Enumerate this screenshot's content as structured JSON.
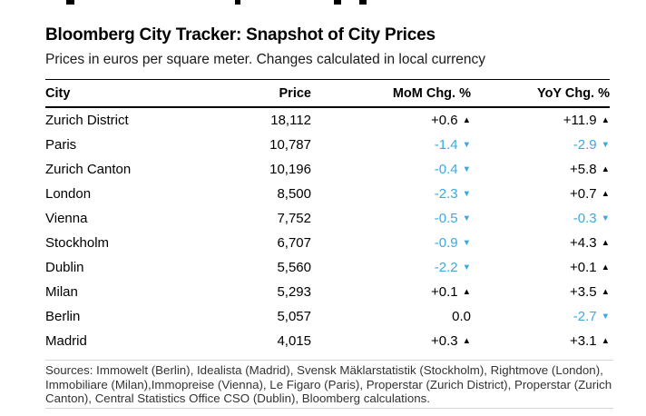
{
  "header": {
    "title": "Bloomberg City Tracker: Snapshot of City Prices",
    "subtitle": "Prices in euros per square meter. Changes calculated in local currency"
  },
  "table": {
    "columns": {
      "city": "City",
      "price": "Price",
      "mom": "MoM Chg. %",
      "yoy": "YoY Chg. %"
    },
    "rows": [
      {
        "city": "Zurich District",
        "price": "18,112",
        "mom": "+0.6",
        "mom_dir": "up",
        "mom_arrow": "▲",
        "yoy": "+11.9",
        "yoy_dir": "up",
        "yoy_arrow": "▲"
      },
      {
        "city": "Paris",
        "price": "10,787",
        "mom": "-1.4",
        "mom_dir": "down",
        "mom_arrow": "▼",
        "yoy": "-2.9",
        "yoy_dir": "down",
        "yoy_arrow": "▼"
      },
      {
        "city": "Zurich Canton",
        "price": "10,196",
        "mom": "-0.4",
        "mom_dir": "down",
        "mom_arrow": "▼",
        "yoy": "+5.8",
        "yoy_dir": "up",
        "yoy_arrow": "▲"
      },
      {
        "city": "London",
        "price": "8,500",
        "mom": "-2.3",
        "mom_dir": "down",
        "mom_arrow": "▼",
        "yoy": "+0.7",
        "yoy_dir": "up",
        "yoy_arrow": "▲"
      },
      {
        "city": "Vienna",
        "price": "7,752",
        "mom": "-0.5",
        "mom_dir": "down",
        "mom_arrow": "▼",
        "yoy": "-0.3",
        "yoy_dir": "down",
        "yoy_arrow": "▼"
      },
      {
        "city": "Stockholm",
        "price": "6,707",
        "mom": "-0.9",
        "mom_dir": "down",
        "mom_arrow": "▼",
        "yoy": "+4.3",
        "yoy_dir": "up",
        "yoy_arrow": "▲"
      },
      {
        "city": "Dublin",
        "price": "5,560",
        "mom": "-2.2",
        "mom_dir": "down",
        "mom_arrow": "▼",
        "yoy": "+0.1",
        "yoy_dir": "up",
        "yoy_arrow": "▲"
      },
      {
        "city": "Milan",
        "price": "5,293",
        "mom": "+0.1",
        "mom_dir": "up",
        "mom_arrow": "▲",
        "yoy": "+3.5",
        "yoy_dir": "up",
        "yoy_arrow": "▲"
      },
      {
        "city": "Berlin",
        "price": "5,057",
        "mom": "0.0",
        "mom_dir": "flat",
        "mom_arrow": "",
        "yoy": "-2.7",
        "yoy_dir": "down",
        "yoy_arrow": "▼"
      },
      {
        "city": "Madrid",
        "price": "4,015",
        "mom": "+0.3",
        "mom_dir": "up",
        "mom_arrow": "▲",
        "yoy": "+3.1",
        "yoy_dir": "up",
        "yoy_arrow": "▲"
      }
    ]
  },
  "colors": {
    "up": "#000000",
    "down": "#3ba9e0",
    "separator": "#d6d6d6"
  },
  "footer": {
    "lines": [
      "Sources: Immowelt (Berlin), Idealista (Madrid), Svensk Mäklarstatistik (Stockholm), Rightmove (London),",
      "Immobiliare (Milan),Immopreise (Vienna), Le Figaro (Paris), Properstar (Zurich District), Properstar (Zurich",
      "Canton), Central Statistics Office CSO (Dublin), Bloomberg calculations."
    ]
  },
  "chart_data": {
    "type": "table",
    "title": "Bloomberg City Tracker: Snapshot of City Prices",
    "subtitle": "Prices in euros per square meter. Changes calculated in local currency",
    "columns": [
      "City",
      "Price",
      "MoM Chg. %",
      "YoY Chg. %"
    ],
    "rows": [
      [
        "Zurich District",
        18112,
        0.6,
        11.9
      ],
      [
        "Paris",
        10787,
        -1.4,
        -2.9
      ],
      [
        "Zurich Canton",
        10196,
        -0.4,
        5.8
      ],
      [
        "London",
        8500,
        -2.3,
        0.7
      ],
      [
        "Vienna",
        7752,
        -0.5,
        -0.3
      ],
      [
        "Stockholm",
        6707,
        -0.9,
        4.3
      ],
      [
        "Dublin",
        5560,
        -2.2,
        0.1
      ],
      [
        "Milan",
        5293,
        0.1,
        3.5
      ],
      [
        "Berlin",
        5057,
        0.0,
        -2.7
      ],
      [
        "Madrid",
        4015,
        0.3,
        3.1
      ]
    ],
    "notes": "Negative changes shown in light blue with down triangle; positive in black with up triangle; 0.0 has no triangle."
  }
}
